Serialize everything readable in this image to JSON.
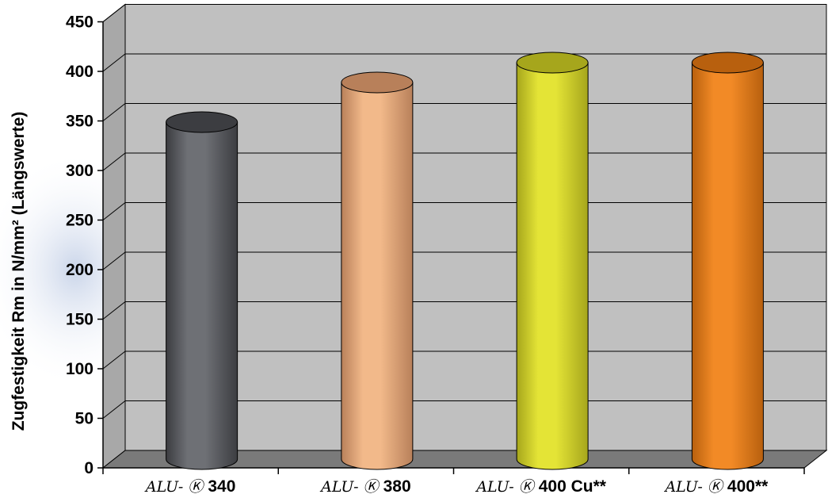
{
  "chart_data": {
    "type": "bar",
    "style": "3d-cylinder",
    "ylabel": "Zugfestigkeit Rm in N/mm² (Längswerte)",
    "ylim": [
      0,
      450
    ],
    "yticks": [
      0,
      50,
      100,
      150,
      200,
      250,
      300,
      350,
      400,
      450
    ],
    "grid": true,
    "categories": [
      {
        "prefix": "ALU-",
        "mark": "K",
        "name": "340"
      },
      {
        "prefix": "ALU-",
        "mark": "K",
        "name": "380"
      },
      {
        "prefix": "ALU-",
        "mark": "K",
        "name": "400 Cu**"
      },
      {
        "prefix": "ALU-",
        "mark": "K",
        "name": "400**"
      }
    ],
    "values": [
      340,
      380,
      400,
      400
    ],
    "colors": [
      "#6e7075",
      "#f2b98a",
      "#e4e436",
      "#f28a26"
    ],
    "colors_dark": [
      "#3c3d41",
      "#b8805a",
      "#a6a61c",
      "#b8600e"
    ],
    "wall_color": "#c0c0c0",
    "floor_color": "#7a7a7a"
  }
}
